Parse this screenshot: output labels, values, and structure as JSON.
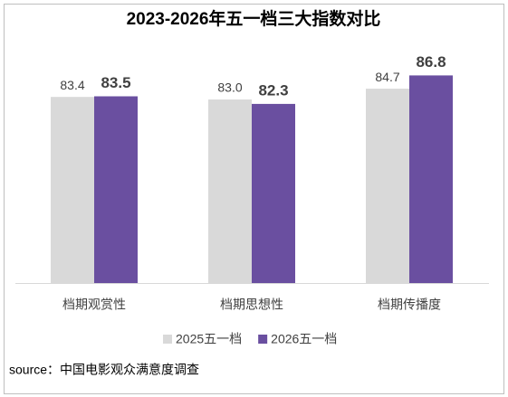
{
  "chart_data": {
    "type": "bar",
    "title": "2023-2026年五一档三大指数对比",
    "categories": [
      "档期观赏性",
      "档期思想性",
      "档期传播度"
    ],
    "series": [
      {
        "name": "2025五一档",
        "color": "#d9d9d9",
        "values": [
          83.4,
          83.0,
          84.7
        ],
        "value_labels": [
          "83.4",
          "83.0",
          "84.7"
        ]
      },
      {
        "name": "2026五一档",
        "color": "#6a4fa0",
        "values": [
          83.5,
          82.3,
          86.8
        ],
        "value_labels": [
          "83.5",
          "82.3",
          "86.8"
        ]
      }
    ],
    "ylim": [
      54,
      90
    ],
    "legend": "bottom",
    "source": "source：中国电影观众满意度调查"
  }
}
